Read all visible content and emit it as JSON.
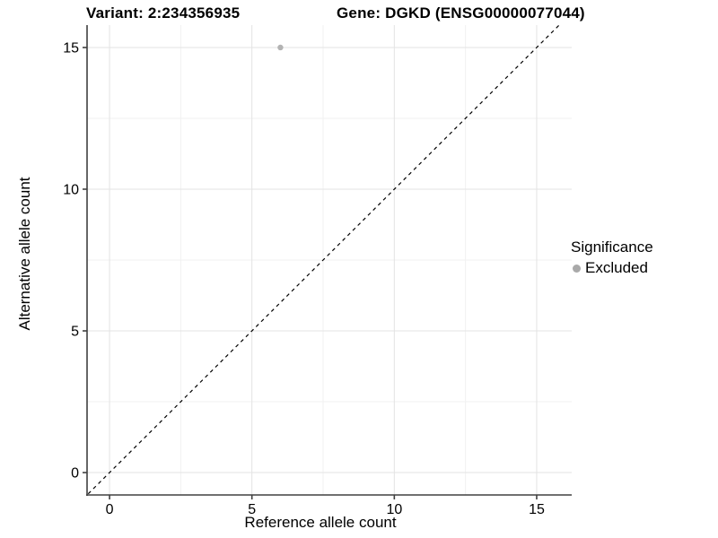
{
  "header": {
    "title_left": "Variant: 2:234356935",
    "title_right": "Gene: DGKD (ENSG00000077044)"
  },
  "chart_data": {
    "type": "scatter",
    "xlabel": "Reference allele count",
    "ylabel": "Alternative allele count",
    "xlim": [
      -0.79,
      16.23
    ],
    "ylim": [
      -0.79,
      15.79
    ],
    "x_ticks": [
      0,
      5,
      10,
      15
    ],
    "y_ticks": [
      0,
      5,
      10,
      15
    ],
    "x_minor_ticks": [
      2.5,
      7.5,
      12.5
    ],
    "y_minor_ticks": [
      2.5,
      7.5,
      12.5
    ],
    "grid": "major and minor gridlines, white background",
    "series": [
      {
        "name": "Excluded",
        "color": "#b3b3b3",
        "points": [
          {
            "x": 6,
            "y": 15
          }
        ]
      }
    ],
    "reference_line": {
      "type": "identity y=x",
      "style": "dashed",
      "color": "#000000"
    },
    "legend": {
      "title": "Significance",
      "position": "right",
      "items": [
        {
          "label": "Excluded",
          "color": "#a9a9a9"
        }
      ]
    },
    "colors": {
      "grid_major": "#e3e3e3",
      "grid_minor": "#f1f1f1",
      "axis": "#404040",
      "text": "#000000"
    }
  }
}
